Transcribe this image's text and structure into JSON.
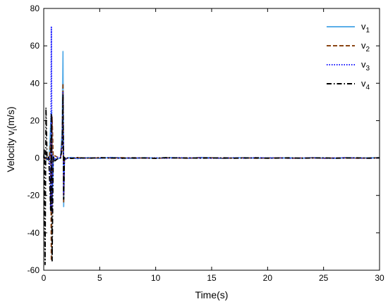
{
  "chart_data": {
    "type": "line",
    "xlabel": "Time(s)",
    "ylabel_main": "Velocity v",
    "ylabel_sub": "i",
    "ylabel_unit": "(m/s)",
    "xlim": [
      0,
      30
    ],
    "ylim": [
      -60,
      80
    ],
    "xticks": [
      0,
      5,
      10,
      15,
      20,
      25,
      30
    ],
    "yticks": [
      -60,
      -40,
      -20,
      0,
      20,
      40,
      60,
      80
    ],
    "grid": false,
    "legend_position": "top-right",
    "series": [
      {
        "name": "v",
        "sub": "1",
        "color": "#5aaee8",
        "style": "solid",
        "x": [
          0,
          0.15,
          0.3,
          0.5,
          0.62,
          0.68,
          0.75,
          0.85,
          1.0,
          1.2,
          1.5,
          1.65,
          1.72,
          1.78,
          1.85,
          1.95,
          2.1,
          2.5,
          3,
          4,
          5,
          6,
          7,
          8,
          9,
          10,
          11,
          12,
          13,
          14,
          15,
          16,
          17,
          18,
          19,
          20,
          21,
          22,
          23,
          24,
          25,
          26,
          27,
          28,
          29,
          30
        ],
        "values": [
          0,
          0.5,
          -1.0,
          0.8,
          18,
          25,
          -22,
          1.0,
          -1.5,
          -0.5,
          0,
          15,
          57,
          -26,
          0.5,
          -0.8,
          0,
          0.3,
          -0.3,
          0.2,
          -0.2,
          0.3,
          0.1,
          -0.2,
          0.2,
          -0.1,
          0.2,
          0.1,
          -0.1,
          0.3,
          0.2,
          -0.2,
          0.1,
          0.2,
          -0.1,
          0.1,
          0.0,
          0.1,
          -0.1,
          0.2,
          0.0,
          -0.1,
          0.2,
          0.0,
          0.1,
          0.2
        ]
      },
      {
        "name": "v",
        "sub": "2",
        "color": "#8b4513",
        "style": "dashed",
        "x": [
          0,
          0.15,
          0.3,
          0.5,
          0.62,
          0.68,
          0.75,
          0.85,
          1.0,
          1.2,
          1.5,
          1.65,
          1.72,
          1.78,
          1.85,
          1.95,
          2.1,
          2.5,
          3,
          4,
          5,
          6,
          7,
          8,
          9,
          10,
          11,
          12,
          13,
          14,
          15,
          16,
          17,
          18,
          19,
          20,
          21,
          22,
          23,
          24,
          25,
          26,
          27,
          28,
          29,
          30
        ],
        "values": [
          0,
          -0.5,
          1.0,
          -0.8,
          10,
          -55,
          22,
          -1.0,
          1.2,
          0.5,
          0,
          10,
          40,
          -24,
          0.4,
          -0.6,
          0,
          -0.2,
          0.2,
          -0.1,
          0.1,
          0.0,
          0.2,
          -0.1,
          0.1,
          -0.2,
          0.1,
          0.0,
          -0.1,
          0.2,
          0.1,
          -0.1,
          0.0,
          0.1,
          -0.1,
          0.0,
          0.1,
          -0.1,
          0.0,
          0.1,
          -0.1,
          0.0,
          0.1,
          -0.1,
          0.0,
          0.1
        ]
      },
      {
        "name": "v",
        "sub": "3",
        "color": "#1a1aff",
        "style": "dotted",
        "x": [
          0,
          0.15,
          0.3,
          0.5,
          0.62,
          0.68,
          0.75,
          0.85,
          1.0,
          1.2,
          1.5,
          1.65,
          1.72,
          1.78,
          1.85,
          1.95,
          2.1,
          2.5,
          3,
          4,
          5,
          6,
          7,
          8,
          9,
          10,
          11,
          12,
          13,
          14,
          15,
          16,
          17,
          18,
          19,
          20,
          21,
          22,
          23,
          24,
          25,
          26,
          27,
          28,
          29,
          30
        ],
        "values": [
          0,
          0.4,
          -0.8,
          0.6,
          -28,
          70,
          -29,
          0.8,
          -1.0,
          0.4,
          0,
          8,
          35,
          -20,
          0.3,
          -0.5,
          0,
          0.2,
          -0.2,
          0.1,
          0.0,
          0.2,
          -0.1,
          0.1,
          0.0,
          0.1,
          -0.1,
          0.2,
          0.0,
          0.1,
          -0.1,
          0.0,
          0.1,
          -0.1,
          0.2,
          0.0,
          0.1,
          -0.1,
          0.0,
          0.1,
          -0.1,
          0.0,
          0.1,
          0.0,
          -0.1,
          0.0
        ]
      },
      {
        "name": "v",
        "sub": "4",
        "color": "#000000",
        "style": "dashdot",
        "x": [
          0,
          0.05,
          0.12,
          0.2,
          0.3,
          0.45,
          0.62,
          0.68,
          0.75,
          0.85,
          1.0,
          1.2,
          1.5,
          1.65,
          1.72,
          1.78,
          1.85,
          1.95,
          2.1,
          2.5,
          3,
          4,
          5,
          6,
          7,
          8,
          9,
          10,
          11,
          12,
          13,
          14,
          15,
          16,
          17,
          18,
          19,
          20,
          21,
          22,
          23,
          24,
          25,
          26,
          27,
          28,
          29,
          30
        ],
        "values": [
          0,
          5,
          -57,
          27,
          -1.0,
          0.5,
          -28,
          24,
          -55,
          1.0,
          -1.5,
          -0.5,
          0,
          5,
          34,
          -22,
          0.3,
          -0.6,
          0,
          -0.2,
          0.2,
          -0.1,
          0.2,
          0.0,
          -0.1,
          0.1,
          0.0,
          -0.1,
          0.2,
          0.0,
          0.1,
          -0.1,
          0.0,
          0.1,
          -0.1,
          0.0,
          0.1,
          -0.1,
          0.0,
          0.1,
          -0.1,
          0.0,
          0.1,
          -0.1,
          0.0,
          0.1,
          -0.1,
          0.1
        ]
      }
    ]
  }
}
